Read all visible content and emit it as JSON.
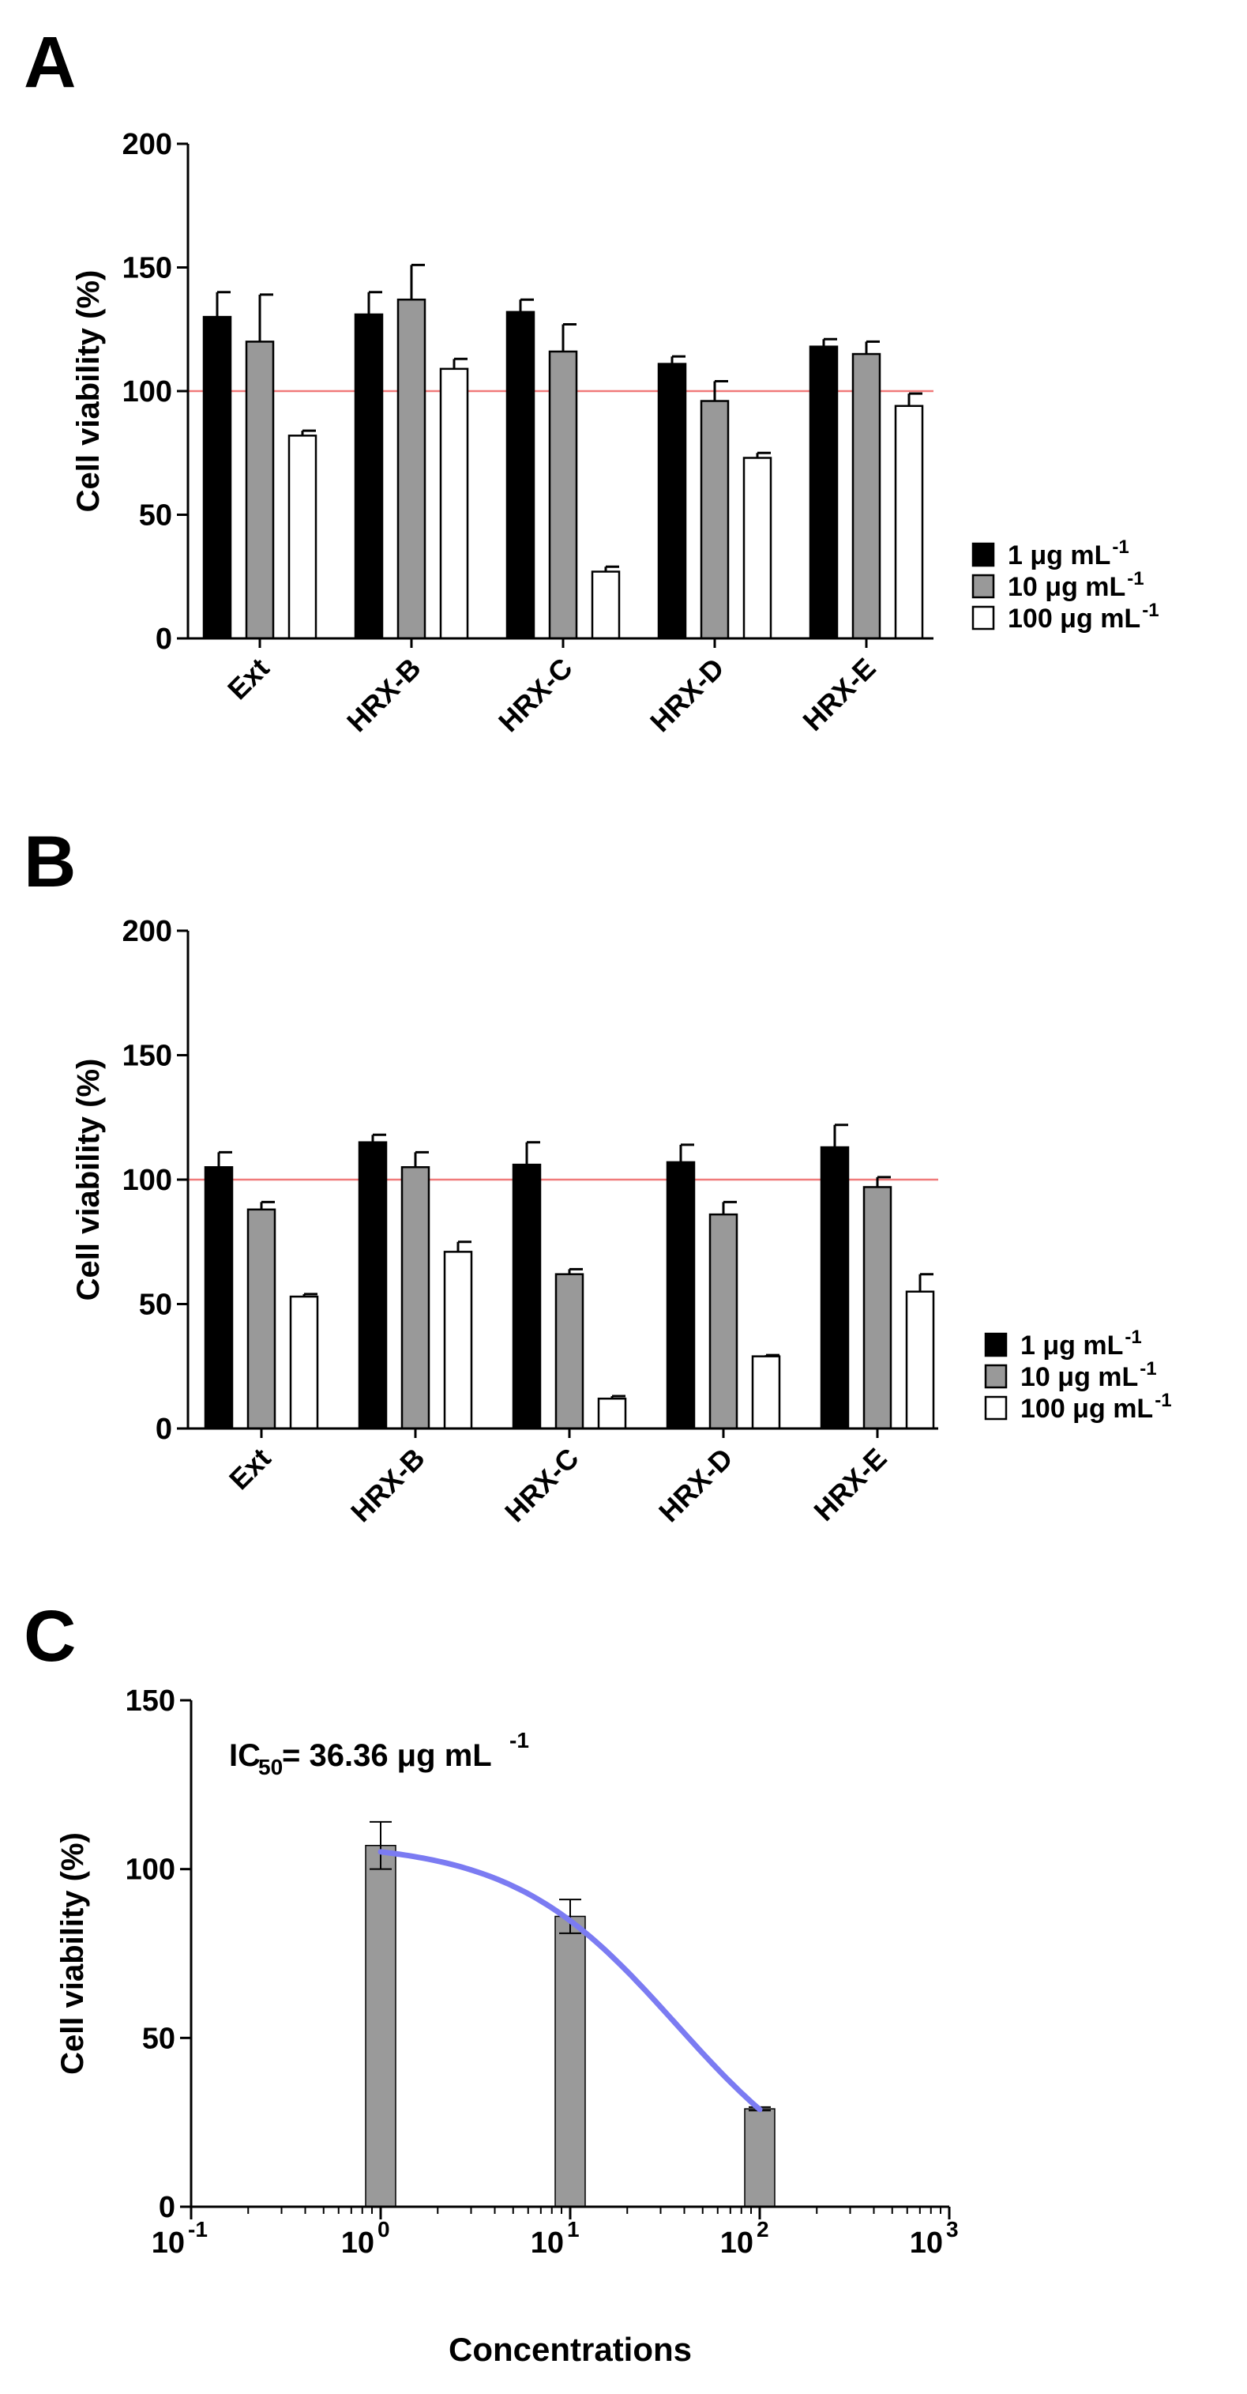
{
  "chart_data": [
    {
      "panel": "A",
      "type": "bar",
      "ylabel": "Cell viability (%)",
      "ylim": [
        0,
        200
      ],
      "yticks": [
        0,
        50,
        100,
        150,
        200
      ],
      "reference_line": 100,
      "categories": [
        "Ext",
        "HRX-B",
        "HRX-C",
        "HRX-D",
        "HRX-E"
      ],
      "series": [
        {
          "name": "1 μg mL",
          "sup": "-1",
          "fill": "#000000",
          "values": [
            130,
            131,
            132,
            111,
            118
          ],
          "errors": [
            10,
            9,
            5,
            3,
            3
          ]
        },
        {
          "name": "10 μg mL",
          "sup": "-1",
          "fill": "#999999",
          "values": [
            120,
            137,
            116,
            96,
            115
          ],
          "errors": [
            19,
            14,
            11,
            8,
            5
          ]
        },
        {
          "name": "100 μg mL",
          "sup": "-1",
          "fill": "#ffffff",
          "values": [
            82,
            109,
            27,
            73,
            94
          ],
          "errors": [
            2,
            4,
            2,
            2,
            5
          ]
        }
      ]
    },
    {
      "panel": "B",
      "type": "bar",
      "ylabel": "Cell viability (%)",
      "ylim": [
        0,
        200
      ],
      "yticks": [
        0,
        50,
        100,
        150,
        200
      ],
      "reference_line": 100,
      "categories": [
        "Ext",
        "HRX-B",
        "HRX-C",
        "HRX-D",
        "HRX-E"
      ],
      "series": [
        {
          "name": "1 μg mL",
          "sup": "-1",
          "fill": "#000000",
          "values": [
            105,
            115,
            106,
            107,
            113
          ],
          "errors": [
            6,
            3,
            9,
            7,
            9
          ]
        },
        {
          "name": "10 μg mL",
          "sup": "-1",
          "fill": "#999999",
          "values": [
            88,
            105,
            62,
            86,
            97
          ],
          "errors": [
            3,
            6,
            2,
            5,
            4
          ]
        },
        {
          "name": "100 μg mL",
          "sup": "-1",
          "fill": "#ffffff",
          "values": [
            53,
            71,
            12,
            29,
            55
          ],
          "errors": [
            1,
            4,
            1,
            0.5,
            7
          ]
        }
      ]
    },
    {
      "panel": "C",
      "type": "bar",
      "xscale": "log",
      "xlim": [
        0.1,
        1000
      ],
      "ylim": [
        0,
        150
      ],
      "yticks": [
        0,
        50,
        100,
        150
      ],
      "xtick_bases": [
        "10",
        "10",
        "10",
        "10",
        "10"
      ],
      "xtick_exponents": [
        "-1",
        "0",
        "1",
        "2",
        "3"
      ],
      "xlabel": "Concentrations",
      "ylabel": "Cell viability (%)",
      "annotation": {
        "prefix": "IC",
        "sub": "50",
        "text": "= 36.36 μg mL",
        "sup": "-1"
      },
      "x": [
        1,
        10,
        100
      ],
      "values": [
        107,
        86,
        29
      ],
      "errors": [
        7,
        5,
        0.5
      ],
      "fit_curve": {
        "type": "line",
        "color": "#7b7bf2",
        "ic50": 36.36,
        "top": 108,
        "bottom": 0,
        "hill": 1,
        "x_range": [
          1,
          100
        ]
      }
    }
  ],
  "panel_letters": [
    "A",
    "B",
    "C"
  ]
}
